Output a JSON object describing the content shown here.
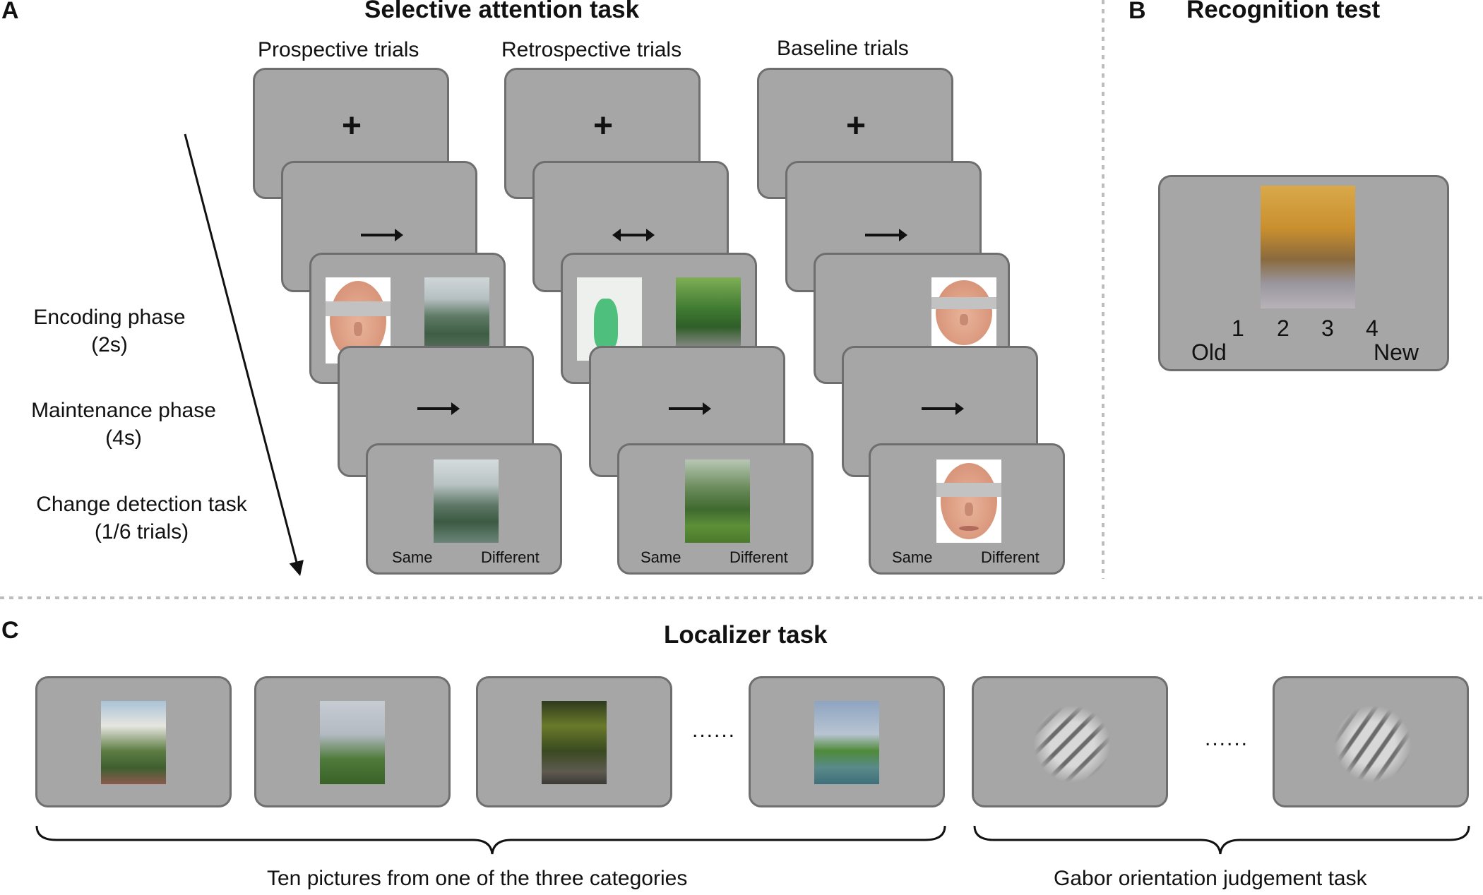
{
  "panel_a": {
    "letter": "A",
    "title": "Selective attention task",
    "columns": [
      "Prospective trials",
      "Retrospective trials",
      "Baseline trials"
    ],
    "phases": [
      {
        "name": "Encoding phase",
        "detail": "(2s)"
      },
      {
        "name": "Maintenance phase",
        "detail": "(4s)"
      },
      {
        "name": "Change detection task",
        "detail": "(1/6 trials)"
      }
    ],
    "fixation_symbol": "+",
    "responses": {
      "same": "Same",
      "different": "Different"
    }
  },
  "panel_b": {
    "letter": "B",
    "title": "Recognition test",
    "scale_numbers": [
      "1",
      "2",
      "3",
      "4"
    ],
    "scale_left": "Old",
    "scale_right": "New"
  },
  "panel_c": {
    "letter": "C",
    "title": "Localizer task",
    "ellipsis": "......",
    "brace_label_pictures": "Ten pictures from one of the three categories",
    "brace_label_gabor": "Gabor orientation judgement task"
  },
  "colors": {
    "card_fill": "#a6a6a6",
    "card_border": "#6e6e6e",
    "divider": "#bdbdbd"
  }
}
